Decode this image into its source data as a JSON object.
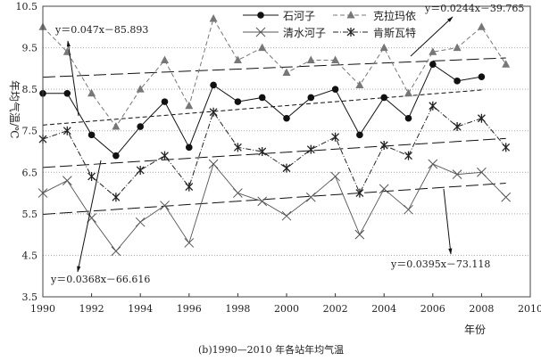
{
  "chart_data": {
    "type": "line",
    "title": "(b)1990—2010 年各站年均气温",
    "xlabel": "年份",
    "ylabel": "年均气温/℃",
    "xlim": [
      1990,
      2010
    ],
    "ylim": [
      3.5,
      10.5
    ],
    "xticks": [
      "1990",
      "1992",
      "1994",
      "1996",
      "1998",
      "2000",
      "2002",
      "2004",
      "2006",
      "2008",
      "2010"
    ],
    "yticks": [
      "3.5",
      "4.5",
      "5.5",
      "6.5",
      "7.5",
      "8.5",
      "9.5",
      "10.5"
    ],
    "grid": "horizontal dotted",
    "legend_position": "top-right",
    "series": [
      {
        "name": "石河子",
        "marker": "circle",
        "color": "#111111",
        "x": [
          1990,
          1991,
          1992,
          1993,
          1994,
          1995,
          1996,
          1997,
          1998,
          1999,
          2000,
          2001,
          2002,
          2003,
          2004,
          2005,
          2006,
          2007,
          2008
        ],
        "values": [
          8.4,
          8.4,
          7.4,
          6.9,
          7.6,
          8.2,
          7.1,
          8.6,
          8.2,
          8.3,
          7.8,
          8.3,
          8.5,
          7.4,
          8.3,
          7.8,
          9.1,
          8.7,
          8.8
        ]
      },
      {
        "name": "克拉玛依",
        "marker": "triangle",
        "color": "#777777",
        "x": [
          1990,
          1991,
          1992,
          1993,
          1994,
          1995,
          1996,
          1997,
          1998,
          1999,
          2000,
          2001,
          2002,
          2003,
          2004,
          2005,
          2006,
          2007,
          2008,
          2009
        ],
        "values": [
          10.0,
          9.4,
          8.4,
          7.6,
          8.5,
          9.2,
          8.1,
          10.2,
          9.2,
          9.5,
          8.9,
          9.2,
          9.2,
          8.6,
          9.5,
          8.4,
          9.4,
          9.5,
          10.0,
          9.1
        ]
      },
      {
        "name": "清水河子",
        "marker": "x",
        "color": "#555555",
        "x": [
          1990,
          1991,
          1992,
          1993,
          1994,
          1995,
          1996,
          1997,
          1998,
          1999,
          2000,
          2001,
          2002,
          2003,
          2004,
          2005,
          2006,
          2007,
          2008,
          2009
        ],
        "values": [
          6.0,
          6.3,
          5.4,
          4.6,
          5.3,
          5.7,
          4.8,
          6.7,
          6.0,
          5.8,
          5.45,
          5.9,
          6.4,
          5.0,
          6.1,
          5.6,
          6.7,
          6.45,
          6.5,
          5.9
        ]
      },
      {
        "name": "肯斯瓦特",
        "marker": "asterisk",
        "color": "#222222",
        "x": [
          1990,
          1991,
          1992,
          1993,
          1994,
          1995,
          1996,
          1997,
          1998,
          1999,
          2000,
          2001,
          2002,
          2003,
          2004,
          2005,
          2006,
          2007,
          2008,
          2009
        ],
        "values": [
          7.3,
          7.5,
          6.4,
          5.9,
          6.55,
          6.9,
          6.15,
          7.95,
          7.1,
          7.0,
          6.6,
          7.05,
          7.35,
          6.0,
          7.15,
          6.9,
          8.1,
          7.6,
          7.8,
          7.1
        ]
      }
    ],
    "trendlines": [
      {
        "series": "石河子",
        "equation": "y＝0.047x－85.893",
        "slope": 0.047,
        "intercept": -85.893,
        "x": [
          1990,
          2008
        ]
      },
      {
        "series": "克拉玛依",
        "equation": "y＝0.0244x－39.765",
        "slope": 0.0244,
        "intercept": -39.765,
        "x": [
          1990,
          2009
        ]
      },
      {
        "series": "肯斯瓦特",
        "equation": "y＝0.0368x－66.616",
        "slope": 0.0368,
        "intercept": -66.616,
        "x": [
          1990,
          2009
        ]
      },
      {
        "series": "清水河子",
        "equation": "y＝0.0395x－73.118",
        "slope": 0.0395,
        "intercept": -73.118,
        "x": [
          1990,
          2009
        ]
      }
    ]
  }
}
